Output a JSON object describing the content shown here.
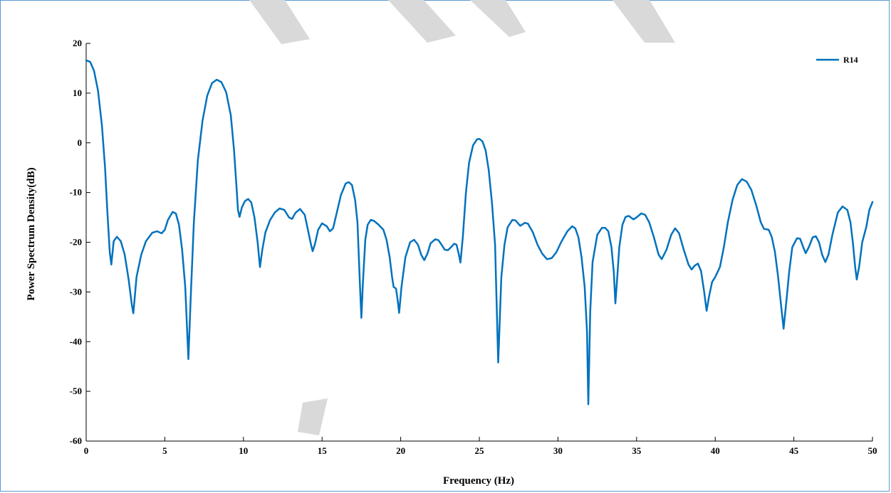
{
  "chart_data": {
    "type": "line",
    "title": "",
    "xlabel": "Frequency (Hz)",
    "ylabel": "Power Spectrum Density(dB)",
    "xlim": [
      0,
      50
    ],
    "ylim": [
      -60,
      20
    ],
    "xticks": [
      0,
      5,
      10,
      15,
      20,
      25,
      30,
      35,
      40,
      45,
      50
    ],
    "yticks": [
      20,
      10,
      0,
      -10,
      -20,
      -30,
      -40,
      -50,
      -60
    ],
    "grid": false,
    "legend_position": "top-right",
    "series": [
      {
        "name": "R14",
        "color": "#0072bd",
        "points": [
          [
            0,
            16.6
          ],
          [
            0.25,
            16.3
          ],
          [
            0.5,
            14.5
          ],
          [
            0.75,
            10.5
          ],
          [
            1.0,
            3.5
          ],
          [
            1.2,
            -5
          ],
          [
            1.35,
            -14
          ],
          [
            1.5,
            -22
          ],
          [
            1.6,
            -24.5
          ],
          [
            1.75,
            -19.8
          ],
          [
            1.95,
            -18.9
          ],
          [
            2.2,
            -19.8
          ],
          [
            2.45,
            -22.5
          ],
          [
            2.7,
            -27.5
          ],
          [
            2.9,
            -32.5
          ],
          [
            3.0,
            -34.3
          ],
          [
            3.2,
            -27
          ],
          [
            3.5,
            -22.5
          ],
          [
            3.8,
            -19.8
          ],
          [
            4.2,
            -18.1
          ],
          [
            4.5,
            -17.8
          ],
          [
            4.8,
            -18.2
          ],
          [
            5.0,
            -17.5
          ],
          [
            5.2,
            -15.5
          ],
          [
            5.5,
            -13.9
          ],
          [
            5.7,
            -14.2
          ],
          [
            5.9,
            -16.5
          ],
          [
            6.1,
            -21.5
          ],
          [
            6.3,
            -29
          ],
          [
            6.5,
            -43.5
          ],
          [
            6.65,
            -31
          ],
          [
            6.85,
            -16
          ],
          [
            7.1,
            -3.5
          ],
          [
            7.4,
            4.5
          ],
          [
            7.7,
            9.5
          ],
          [
            8.0,
            12
          ],
          [
            8.3,
            12.7
          ],
          [
            8.6,
            12.2
          ],
          [
            8.9,
            10.2
          ],
          [
            9.2,
            5.5
          ],
          [
            9.4,
            -1.5
          ],
          [
            9.55,
            -8.5
          ],
          [
            9.65,
            -13.5
          ],
          [
            9.75,
            -14.9
          ],
          [
            9.9,
            -13
          ],
          [
            10.1,
            -11.7
          ],
          [
            10.3,
            -11.3
          ],
          [
            10.5,
            -12
          ],
          [
            10.7,
            -15
          ],
          [
            10.9,
            -20
          ],
          [
            11.05,
            -25
          ],
          [
            11.2,
            -21.5
          ],
          [
            11.4,
            -18
          ],
          [
            11.7,
            -15.5
          ],
          [
            12.0,
            -14
          ],
          [
            12.3,
            -13.2
          ],
          [
            12.6,
            -13.5
          ],
          [
            12.9,
            -15
          ],
          [
            13.1,
            -15.3
          ],
          [
            13.3,
            -14.1
          ],
          [
            13.6,
            -13.3
          ],
          [
            13.9,
            -14.5
          ],
          [
            14.1,
            -17.5
          ],
          [
            14.3,
            -20.5
          ],
          [
            14.4,
            -21.8
          ],
          [
            14.55,
            -20.3
          ],
          [
            14.75,
            -17.5
          ],
          [
            15.0,
            -16.2
          ],
          [
            15.3,
            -16.8
          ],
          [
            15.5,
            -17.8
          ],
          [
            15.7,
            -17.2
          ],
          [
            15.9,
            -14.5
          ],
          [
            16.2,
            -10.5
          ],
          [
            16.5,
            -8.2
          ],
          [
            16.7,
            -7.9
          ],
          [
            16.9,
            -8.5
          ],
          [
            17.1,
            -11.5
          ],
          [
            17.25,
            -16
          ],
          [
            17.4,
            -28
          ],
          [
            17.5,
            -35.2
          ],
          [
            17.6,
            -28
          ],
          [
            17.75,
            -19.5
          ],
          [
            17.9,
            -16.5
          ],
          [
            18.1,
            -15.5
          ],
          [
            18.3,
            -15.7
          ],
          [
            18.6,
            -16.5
          ],
          [
            18.9,
            -17.5
          ],
          [
            19.1,
            -19.5
          ],
          [
            19.3,
            -23
          ],
          [
            19.45,
            -27
          ],
          [
            19.55,
            -29
          ],
          [
            19.7,
            -29.3
          ],
          [
            19.8,
            -31.5
          ],
          [
            19.9,
            -34.2
          ],
          [
            20.05,
            -29
          ],
          [
            20.3,
            -23
          ],
          [
            20.6,
            -20
          ],
          [
            20.85,
            -19.5
          ],
          [
            21.1,
            -20.5
          ],
          [
            21.3,
            -22.5
          ],
          [
            21.5,
            -23.6
          ],
          [
            21.7,
            -22.3
          ],
          [
            21.9,
            -20.2
          ],
          [
            22.2,
            -19.4
          ],
          [
            22.4,
            -19.6
          ],
          [
            22.6,
            -20.5
          ],
          [
            22.8,
            -21.5
          ],
          [
            23.0,
            -21.6
          ],
          [
            23.2,
            -21
          ],
          [
            23.4,
            -20.3
          ],
          [
            23.55,
            -20.5
          ],
          [
            23.7,
            -22.5
          ],
          [
            23.8,
            -24.1
          ],
          [
            23.95,
            -19
          ],
          [
            24.15,
            -10
          ],
          [
            24.35,
            -4
          ],
          [
            24.6,
            -0.5
          ],
          [
            24.85,
            0.7
          ],
          [
            25.0,
            0.8
          ],
          [
            25.2,
            0.3
          ],
          [
            25.4,
            -1.5
          ],
          [
            25.6,
            -5.5
          ],
          [
            25.8,
            -12
          ],
          [
            26.0,
            -20.5
          ],
          [
            26.2,
            -44.2
          ],
          [
            26.4,
            -27
          ],
          [
            26.6,
            -20.5
          ],
          [
            26.8,
            -17
          ],
          [
            27.1,
            -15.5
          ],
          [
            27.3,
            -15.6
          ],
          [
            27.6,
            -16.7
          ],
          [
            27.9,
            -16.1
          ],
          [
            28.1,
            -16.3
          ],
          [
            28.4,
            -18
          ],
          [
            28.7,
            -20.5
          ],
          [
            29.0,
            -22.3
          ],
          [
            29.3,
            -23.4
          ],
          [
            29.6,
            -23.2
          ],
          [
            29.9,
            -22
          ],
          [
            30.2,
            -20
          ],
          [
            30.6,
            -17.8
          ],
          [
            30.9,
            -16.8
          ],
          [
            31.1,
            -17.2
          ],
          [
            31.3,
            -19
          ],
          [
            31.5,
            -23
          ],
          [
            31.7,
            -29
          ],
          [
            31.85,
            -38
          ],
          [
            31.93,
            -52.6
          ],
          [
            32.05,
            -34
          ],
          [
            32.2,
            -24
          ],
          [
            32.5,
            -18.5
          ],
          [
            32.8,
            -17.1
          ],
          [
            33.0,
            -17.1
          ],
          [
            33.2,
            -17.8
          ],
          [
            33.4,
            -21
          ],
          [
            33.55,
            -26
          ],
          [
            33.65,
            -32.3
          ],
          [
            33.75,
            -28
          ],
          [
            33.9,
            -21
          ],
          [
            34.1,
            -16.5
          ],
          [
            34.3,
            -14.9
          ],
          [
            34.5,
            -14.7
          ],
          [
            34.8,
            -15.4
          ],
          [
            35.0,
            -15
          ],
          [
            35.3,
            -14.2
          ],
          [
            35.55,
            -14.5
          ],
          [
            35.8,
            -16
          ],
          [
            36.1,
            -19
          ],
          [
            36.4,
            -22.5
          ],
          [
            36.6,
            -23.4
          ],
          [
            36.9,
            -21.5
          ],
          [
            37.2,
            -18.5
          ],
          [
            37.45,
            -17.2
          ],
          [
            37.7,
            -18.2
          ],
          [
            38.0,
            -21.5
          ],
          [
            38.3,
            -24.5
          ],
          [
            38.5,
            -25.5
          ],
          [
            38.7,
            -24.7
          ],
          [
            38.9,
            -24.3
          ],
          [
            39.1,
            -25.8
          ],
          [
            39.3,
            -30
          ],
          [
            39.45,
            -33.8
          ],
          [
            39.6,
            -31
          ],
          [
            39.8,
            -28
          ],
          [
            40.0,
            -27
          ],
          [
            40.3,
            -25
          ],
          [
            40.55,
            -21
          ],
          [
            40.8,
            -16
          ],
          [
            41.1,
            -11.5
          ],
          [
            41.4,
            -8.5
          ],
          [
            41.7,
            -7.3
          ],
          [
            42.0,
            -7.8
          ],
          [
            42.3,
            -9.5
          ],
          [
            42.6,
            -12.5
          ],
          [
            42.9,
            -16
          ],
          [
            43.1,
            -17.3
          ],
          [
            43.4,
            -17.5
          ],
          [
            43.6,
            -19
          ],
          [
            43.8,
            -22
          ],
          [
            44.0,
            -27
          ],
          [
            44.2,
            -33
          ],
          [
            44.35,
            -37.4
          ],
          [
            44.55,
            -31
          ],
          [
            44.7,
            -26
          ],
          [
            44.9,
            -21
          ],
          [
            45.2,
            -19.2
          ],
          [
            45.4,
            -19.3
          ],
          [
            45.6,
            -21
          ],
          [
            45.75,
            -22.2
          ],
          [
            45.95,
            -21
          ],
          [
            46.2,
            -19
          ],
          [
            46.4,
            -18.8
          ],
          [
            46.6,
            -20
          ],
          [
            46.8,
            -22.5
          ],
          [
            47.0,
            -24
          ],
          [
            47.2,
            -22.5
          ],
          [
            47.45,
            -18.5
          ],
          [
            47.8,
            -14
          ],
          [
            48.1,
            -12.8
          ],
          [
            48.4,
            -13.5
          ],
          [
            48.6,
            -16
          ],
          [
            48.75,
            -20
          ],
          [
            48.9,
            -25
          ],
          [
            49.0,
            -27.5
          ],
          [
            49.15,
            -25
          ],
          [
            49.35,
            -20
          ],
          [
            49.6,
            -17
          ],
          [
            49.8,
            -13.5
          ],
          [
            50.0,
            -11.9
          ]
        ]
      }
    ]
  }
}
